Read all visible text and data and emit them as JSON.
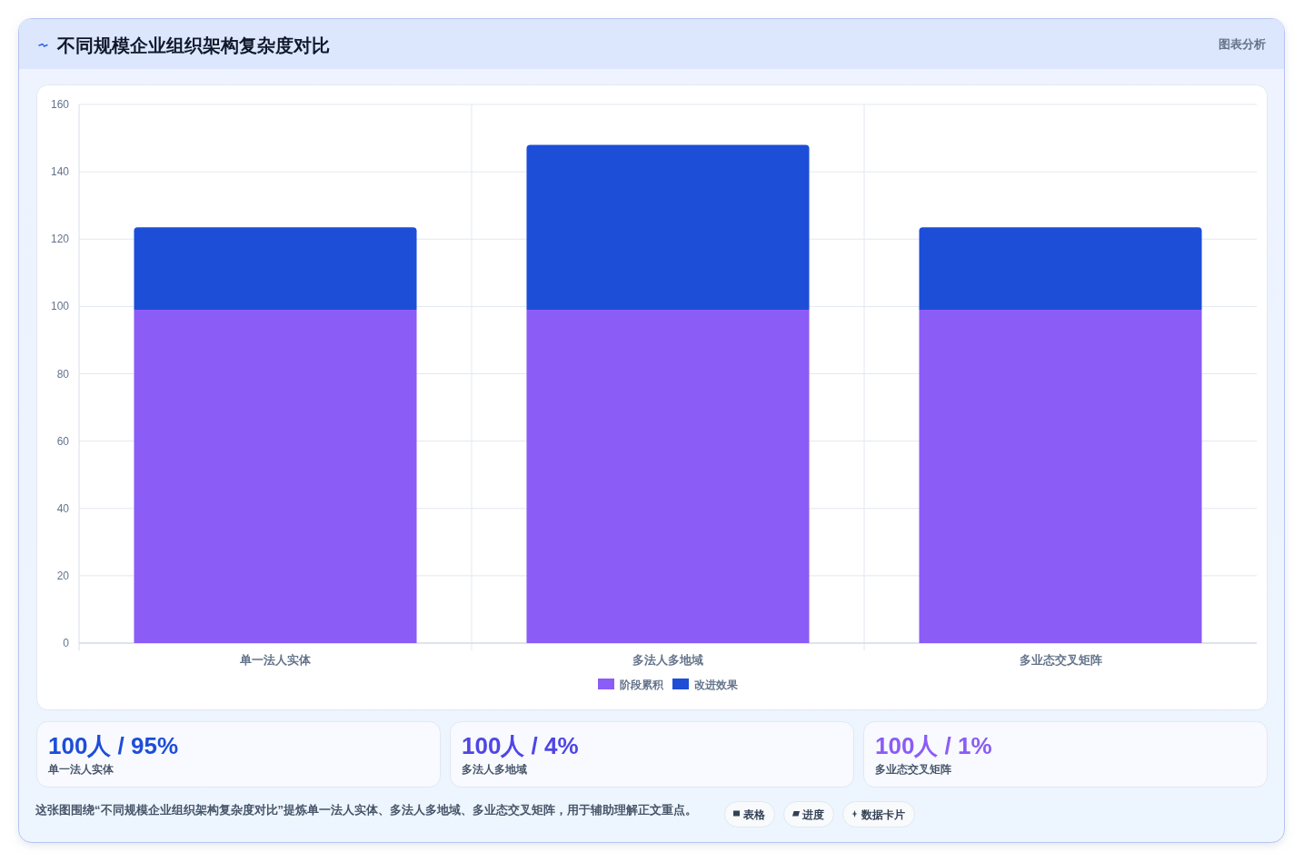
{
  "chart_data": {
    "type": "bar",
    "stacked": true,
    "title": "不同规模企业组织架构复杂度对比",
    "categories": [
      "单一法人实体",
      "多法人多地域",
      "多业态交叉矩阵"
    ],
    "series": [
      {
        "name": "阶段累积",
        "color": "#8b5cf6",
        "values": [
          99,
          99,
          99
        ]
      },
      {
        "name": "改进效果",
        "color": "#1d4ed8",
        "values": [
          24.5,
          49,
          24.5
        ]
      }
    ],
    "ylim": [
      0,
      160
    ],
    "yticks": [
      0,
      20,
      40,
      60,
      80,
      100,
      120,
      140,
      160
    ],
    "grid": true,
    "legend": "bottom",
    "annotations": [
      "图表分析",
      "100人 / 95%",
      "单一法人实体",
      "100人 / 4%",
      "多法人多地域",
      "100人 / 1%",
      "多业态交叉矩阵",
      "这张图围绕“不同规模企业组织架构复杂度对比”提炼单一法人实体、多法人多地域、多业态交叉矩阵，用于辅助理解正文重点。",
      "表格",
      "进度",
      "数据卡片"
    ]
  }
}
